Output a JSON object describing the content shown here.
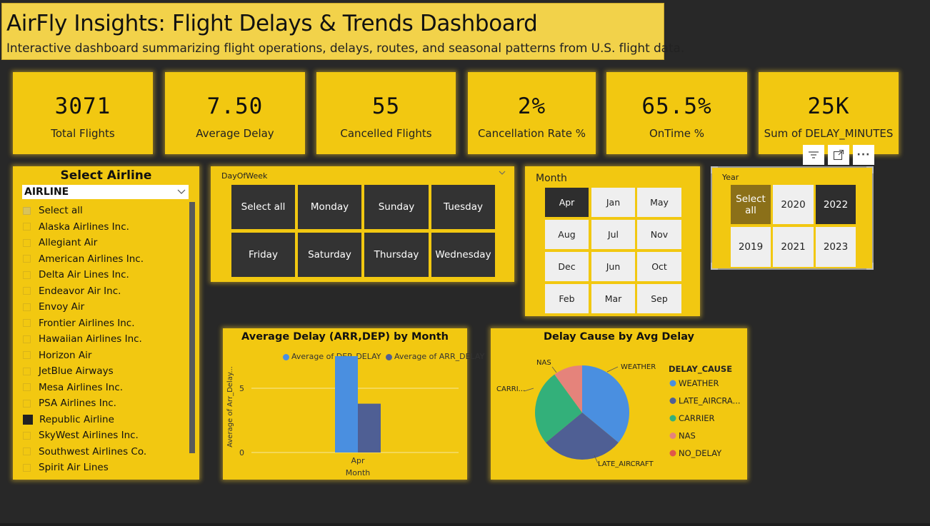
{
  "header": {
    "title": "AirFly Insights: Flight Delays & Trends Dashboard",
    "subtitle": "Interactive dashboard summarizing flight operations, delays, routes, and seasonal patterns from U.S. flight data."
  },
  "kpis": [
    {
      "value": "3071",
      "label": "Total Flights"
    },
    {
      "value": "7.50",
      "label": "Average Delay"
    },
    {
      "value": "55",
      "label": "Cancelled Flights"
    },
    {
      "value": "2%",
      "label": "Cancellation Rate %"
    },
    {
      "value": "65.5%",
      "label": "OnTime %"
    },
    {
      "value": "25K",
      "label": "Sum of DELAY_MINUTES"
    }
  ],
  "airline_slicer": {
    "title": "Select Airline",
    "field": "AIRLINE",
    "items": [
      {
        "label": "Select all",
        "state": "partial"
      },
      {
        "label": "Alaska Airlines Inc.",
        "state": "unchecked"
      },
      {
        "label": "Allegiant Air",
        "state": "unchecked"
      },
      {
        "label": "American Airlines Inc.",
        "state": "unchecked"
      },
      {
        "label": "Delta Air Lines Inc.",
        "state": "unchecked"
      },
      {
        "label": "Endeavor Air Inc.",
        "state": "unchecked"
      },
      {
        "label": "Envoy Air",
        "state": "unchecked"
      },
      {
        "label": "Frontier Airlines Inc.",
        "state": "unchecked"
      },
      {
        "label": "Hawaiian Airlines Inc.",
        "state": "unchecked"
      },
      {
        "label": "Horizon Air",
        "state": "unchecked"
      },
      {
        "label": "JetBlue Airways",
        "state": "unchecked"
      },
      {
        "label": "Mesa Airlines Inc.",
        "state": "unchecked"
      },
      {
        "label": "PSA Airlines Inc.",
        "state": "unchecked"
      },
      {
        "label": "Republic Airline",
        "state": "checked"
      },
      {
        "label": "SkyWest Airlines Inc.",
        "state": "unchecked"
      },
      {
        "label": "Southwest Airlines Co.",
        "state": "unchecked"
      },
      {
        "label": "Spirit Air Lines",
        "state": "unchecked"
      }
    ]
  },
  "dow_slicer": {
    "label": "DayOfWeek",
    "buttons": [
      "Select all",
      "Monday",
      "Sunday",
      "Tuesday",
      "Friday",
      "Saturday",
      "Thursday",
      "Wednesday"
    ]
  },
  "month_slicer": {
    "label": "Month",
    "buttons": [
      {
        "label": "Apr",
        "selected": true
      },
      {
        "label": "Jan",
        "selected": false
      },
      {
        "label": "May",
        "selected": false
      },
      {
        "label": "Aug",
        "selected": false
      },
      {
        "label": "Jul",
        "selected": false
      },
      {
        "label": "Nov",
        "selected": false
      },
      {
        "label": "Dec",
        "selected": false
      },
      {
        "label": "Jun",
        "selected": false
      },
      {
        "label": "Oct",
        "selected": false
      },
      {
        "label": "Feb",
        "selected": false
      },
      {
        "label": "Mar",
        "selected": false
      },
      {
        "label": "Sep",
        "selected": false
      }
    ]
  },
  "year_slicer": {
    "label": "Year",
    "buttons": [
      {
        "label": "Select all",
        "style": "olive"
      },
      {
        "label": "2020",
        "style": "light"
      },
      {
        "label": "2022",
        "style": "dark"
      },
      {
        "label": "2019",
        "style": "light"
      },
      {
        "label": "2021",
        "style": "light"
      },
      {
        "label": "2023",
        "style": "light"
      }
    ]
  },
  "toolbar": {
    "filter_icon": "filter-icon",
    "focus_icon": "focus-mode-icon",
    "more_icon": "more-options-icon",
    "more_glyph": "···"
  },
  "chart_data": [
    {
      "type": "bar",
      "title": "Average Delay (ARR,DEP) by Month",
      "xlabel": "Month",
      "ylabel": "Average of Arr_Delay...",
      "categories": [
        "Apr"
      ],
      "series": [
        {
          "name": "Average of DEP_DELAY",
          "values": [
            7.5
          ],
          "color": "#4a8fe0"
        },
        {
          "name": "Average of ARR_DELAY",
          "values": [
            3.8
          ],
          "color": "#4f5f94"
        }
      ],
      "yticks": [
        0,
        5
      ],
      "ylim": [
        0,
        8
      ],
      "grid": true,
      "legend": "top-right"
    },
    {
      "type": "pie",
      "title": "Delay Cause by Avg Delay",
      "legend_title": "DELAY_CAUSE",
      "legend": "right",
      "slices": [
        {
          "label": "WEATHER",
          "legend_label": "WEATHER",
          "value": 36,
          "color": "#4a8fe0"
        },
        {
          "label": "LATE_AIRCRAFT",
          "legend_label": "LATE_AIRCRA...",
          "value": 28,
          "color": "#4f5f94"
        },
        {
          "label": "CARRI...",
          "legend_label": "CARRIER",
          "value": 26,
          "color": "#33b07a"
        },
        {
          "label": "NAS",
          "legend_label": "NAS",
          "value": 10,
          "color": "#e5837b"
        },
        {
          "label": "",
          "legend_label": "NO_DELAY",
          "value": 0,
          "color": "#e0584a"
        }
      ]
    }
  ]
}
